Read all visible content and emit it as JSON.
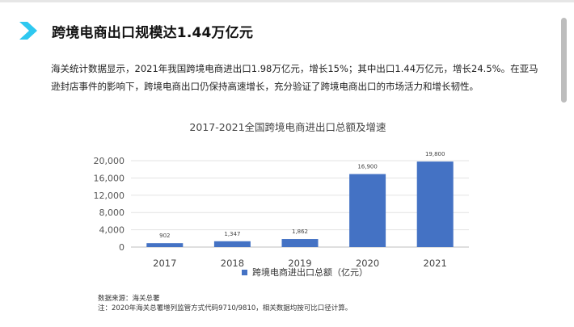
{
  "header": {
    "title": "跨境电商出口规模达1.44万亿元",
    "accent_color": "#2ec8f0"
  },
  "body_text": "海关统计数据显示，2021年我国跨境电商进出口1.98万亿元，增长15%；其中出口1.44万亿元，增长24.5%。在亚马逊封店事件的影响下，跨境电商出口仍保持高速增长，充分验证了跨境电商出口的市场活力和增长韧性。",
  "chart_data": {
    "type": "bar",
    "title": "2017-2021全国跨境电商进出口总额及增速",
    "categories": [
      "2017",
      "2018",
      "2019",
      "2020",
      "2021"
    ],
    "series": [
      {
        "name": "跨境电商进出口总额（亿元）",
        "values": [
          902,
          1347,
          1862,
          16900,
          19800
        ],
        "labels": [
          "902",
          "1,347",
          "1,862",
          "16,900",
          "19,800"
        ],
        "color": "#4472c4"
      }
    ],
    "yticks": [
      "0",
      "4,000",
      "8,000",
      "12,000",
      "16,000",
      "20,000"
    ],
    "ylim": [
      0,
      20000
    ],
    "grid": true,
    "legend": "bottom"
  },
  "footnotes": {
    "source": "数据来源：海关总署",
    "note": "注：2020年海关总署增列监管方式代码9710/9810，相关数据均按可比口径计算。"
  }
}
